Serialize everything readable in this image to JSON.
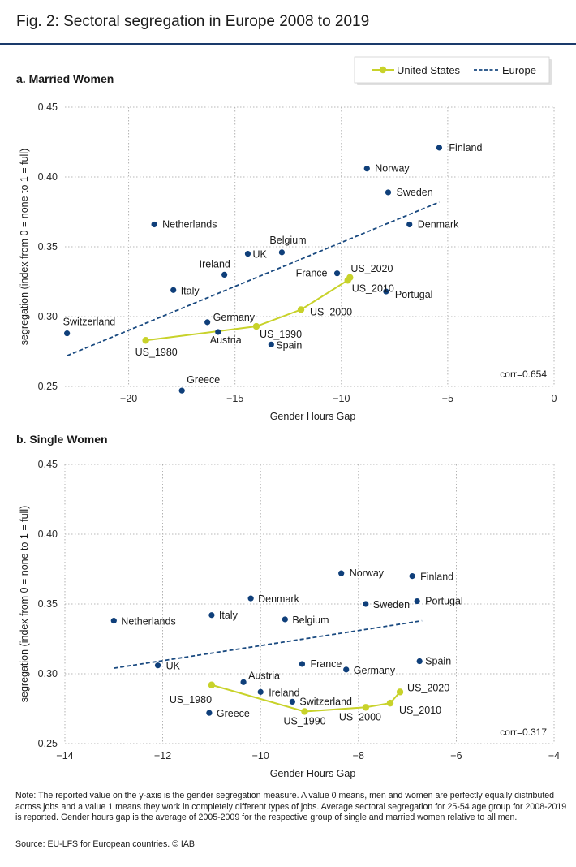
{
  "figure": {
    "title": "Fig. 2: Sectoral segregation in Europe 2008 to 2019",
    "note": "Note: The reported value on the y-axis is the gender segregation measure. A value 0 means, men and women are perfectly equally distributed across jobs and a value 1 means they work in completely different types of jobs. Average sectoral segregation for 25-54 age group for 2008-2019 is reported. Gender hours gap is the average of 2005-2009 for the respective group of single and married women relative to all men.",
    "source": "Source: EU-LFS for European countries. © IAB"
  },
  "colors": {
    "us": "#c8d22a",
    "eu": "#1a4a80",
    "point": "#0f3f7a",
    "grid": "#a0a0a0",
    "title_rule": "#1a3a6b"
  },
  "chart_data": [
    {
      "type": "scatter",
      "title": "a. Married Women",
      "xlabel": "Gender Hours Gap",
      "ylabel": "segregation (index from 0 = none to 1 = full)",
      "xlim": [
        -23,
        0
      ],
      "ylim": [
        0.25,
        0.45
      ],
      "xticks": [
        -20,
        -15,
        -10,
        -5,
        0
      ],
      "yticks": [
        0.25,
        0.3,
        0.35,
        0.4,
        0.45
      ],
      "grid": true,
      "legend": {
        "placement": "top-right",
        "entries": [
          "United States",
          "Europe"
        ]
      },
      "annotation": "corr=0.654",
      "points": [
        {
          "label": "Finland",
          "x": -5.4,
          "y": 0.421
        },
        {
          "label": "Norway",
          "x": -8.8,
          "y": 0.406
        },
        {
          "label": "Sweden",
          "x": -7.8,
          "y": 0.389
        },
        {
          "label": "Denmark",
          "x": -6.8,
          "y": 0.366
        },
        {
          "label": "Netherlands",
          "x": -18.8,
          "y": 0.366
        },
        {
          "label": "Belgium",
          "x": -12.8,
          "y": 0.346
        },
        {
          "label": "UK",
          "x": -14.4,
          "y": 0.345
        },
        {
          "label": "Ireland",
          "x": -15.5,
          "y": 0.33
        },
        {
          "label": "France",
          "x": -10.2,
          "y": 0.331
        },
        {
          "label": "Italy",
          "x": -17.9,
          "y": 0.319
        },
        {
          "label": "Portugal",
          "x": -7.9,
          "y": 0.318
        },
        {
          "label": "Switzerland",
          "x": -22.9,
          "y": 0.288
        },
        {
          "label": "Germany",
          "x": -16.3,
          "y": 0.296
        },
        {
          "label": "Austria",
          "x": -15.8,
          "y": 0.289
        },
        {
          "label": "Spain",
          "x": -13.3,
          "y": 0.28
        },
        {
          "label": "Greece",
          "x": -17.5,
          "y": 0.247
        }
      ],
      "series": [
        {
          "name": "United States",
          "points": [
            {
              "label": "US_1980",
              "x": -19.2,
              "y": 0.283
            },
            {
              "label": "US_1990",
              "x": -14.0,
              "y": 0.293
            },
            {
              "label": "US_2000",
              "x": -11.9,
              "y": 0.305
            },
            {
              "label": "US_2010",
              "x": -9.7,
              "y": 0.326
            },
            {
              "label": "US_2020",
              "x": -9.6,
              "y": 0.328
            }
          ]
        },
        {
          "name": "Europe",
          "style": "dashed",
          "line": [
            {
              "x": -22.9,
              "y": 0.272
            },
            {
              "x": -5.4,
              "y": 0.382
            }
          ]
        }
      ]
    },
    {
      "type": "scatter",
      "title": "b. Single Women",
      "xlabel": "Gender Hours Gap",
      "ylabel": "segregation (index from 0 = none to 1 = full)",
      "xlim": [
        -14,
        -4
      ],
      "ylim": [
        0.25,
        0.45
      ],
      "xticks": [
        -14,
        -12,
        -10,
        -8,
        -6,
        -4
      ],
      "yticks": [
        0.25,
        0.3,
        0.35,
        0.4,
        0.45
      ],
      "grid": true,
      "annotation": "corr=0.317",
      "points": [
        {
          "label": "Norway",
          "x": -8.35,
          "y": 0.372
        },
        {
          "label": "Finland",
          "x": -6.9,
          "y": 0.37
        },
        {
          "label": "Denmark",
          "x": -10.2,
          "y": 0.354
        },
        {
          "label": "Portugal",
          "x": -6.8,
          "y": 0.352
        },
        {
          "label": "Sweden",
          "x": -7.85,
          "y": 0.35
        },
        {
          "label": "Italy",
          "x": -11.0,
          "y": 0.342
        },
        {
          "label": "Belgium",
          "x": -9.5,
          "y": 0.339
        },
        {
          "label": "Netherlands",
          "x": -13.0,
          "y": 0.338
        },
        {
          "label": "Spain",
          "x": -6.75,
          "y": 0.309
        },
        {
          "label": "UK",
          "x": -12.1,
          "y": 0.306
        },
        {
          "label": "France",
          "x": -9.15,
          "y": 0.307
        },
        {
          "label": "Germany",
          "x": -8.25,
          "y": 0.303
        },
        {
          "label": "Austria",
          "x": -10.35,
          "y": 0.294
        },
        {
          "label": "Ireland",
          "x": -10.0,
          "y": 0.287
        },
        {
          "label": "Switzerland",
          "x": -9.35,
          "y": 0.28
        },
        {
          "label": "Greece",
          "x": -11.05,
          "y": 0.272
        }
      ],
      "series": [
        {
          "name": "United States",
          "points": [
            {
              "label": "US_1980",
              "x": -11.0,
              "y": 0.292
            },
            {
              "label": "US_1990",
              "x": -9.1,
              "y": 0.273
            },
            {
              "label": "US_2000",
              "x": -7.85,
              "y": 0.276
            },
            {
              "label": "US_2010",
              "x": -7.35,
              "y": 0.279
            },
            {
              "label": "US_2020",
              "x": -7.15,
              "y": 0.287
            }
          ]
        },
        {
          "name": "Europe",
          "style": "dashed",
          "line": [
            {
              "x": -13.0,
              "y": 0.304
            },
            {
              "x": -6.7,
              "y": 0.338
            }
          ]
        }
      ]
    }
  ]
}
